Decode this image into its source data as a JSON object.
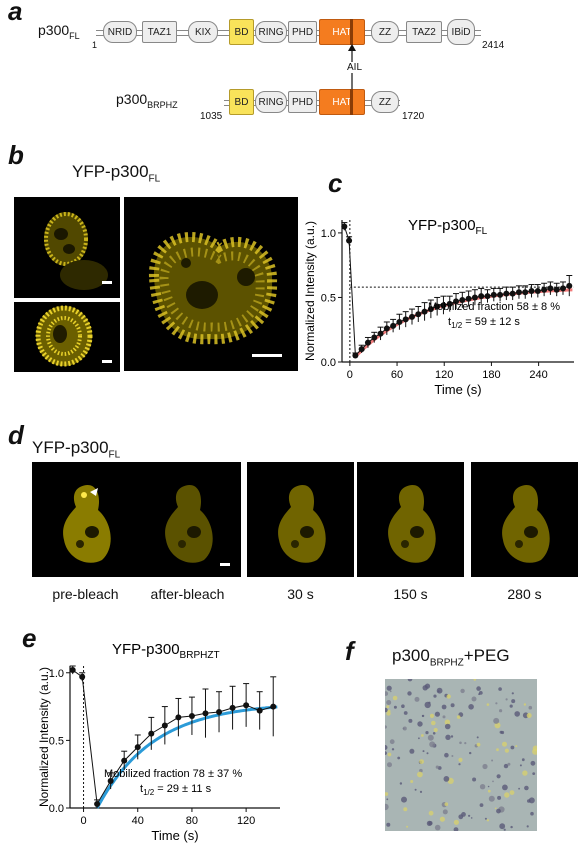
{
  "panels": {
    "a": "a",
    "b": "b",
    "c": "c",
    "d": "d",
    "e": "e",
    "f": "f"
  },
  "panel_a": {
    "fl_name": "p300",
    "fl_sub": "FL",
    "fl_start": "1",
    "fl_end": "2414",
    "fl_domains": [
      "NRID",
      "TAZ1",
      "KIX",
      "BD",
      "RING",
      "PHD",
      "HAT",
      "ZZ",
      "TAZ2",
      "IBiD"
    ],
    "ail_label": "AIL",
    "brphz_name": "p300",
    "brphz_sub": "BRPHZ",
    "brphz_start": "1035",
    "brphz_end": "1720",
    "brphz_domains": [
      "BD",
      "RING",
      "PHD",
      "HAT",
      "ZZ"
    ]
  },
  "panel_b": {
    "title": "YFP-p300",
    "title_sub": "FL"
  },
  "panel_d": {
    "title": "YFP-p300",
    "title_sub": "FL",
    "timepoints": [
      "pre-bleach",
      "after-bleach",
      "30 s",
      "150 s",
      "280 s"
    ]
  },
  "panel_f": {
    "title_pre": "p300",
    "title_sub": "BRPHZ",
    "title_post": "+PEG"
  },
  "chart_data": [
    {
      "panel": "c",
      "type": "line",
      "title": "YFP-p300",
      "title_sub": "FL",
      "xlabel": "Time (s)",
      "ylabel": "Normalized Intensity (a.u.)",
      "xlim": [
        -10,
        285
      ],
      "ylim": [
        0,
        1.1
      ],
      "xticks": [
        "0",
        "60",
        "120",
        "180",
        "240"
      ],
      "yticks": [
        "0.0",
        "0.5",
        "1.0"
      ],
      "series": [
        {
          "type": "scatter",
          "x": [
            -7,
            -1,
            7,
            15,
            23,
            31,
            39,
            47,
            55,
            63,
            71,
            79,
            87,
            95,
            103,
            111,
            119,
            127,
            135,
            143,
            151,
            159,
            167,
            175,
            183,
            191,
            199,
            207,
            215,
            223,
            231,
            239,
            247,
            255,
            263,
            271,
            279
          ],
          "y": [
            1.05,
            0.94,
            0.05,
            0.1,
            0.15,
            0.19,
            0.22,
            0.26,
            0.28,
            0.31,
            0.33,
            0.35,
            0.37,
            0.39,
            0.41,
            0.43,
            0.44,
            0.45,
            0.47,
            0.48,
            0.49,
            0.5,
            0.51,
            0.51,
            0.52,
            0.52,
            0.53,
            0.53,
            0.54,
            0.54,
            0.55,
            0.55,
            0.56,
            0.57,
            0.56,
            0.57,
            0.59
          ],
          "err": [
            0.03,
            0.03,
            0.02,
            0.03,
            0.04,
            0.04,
            0.05,
            0.05,
            0.05,
            0.06,
            0.06,
            0.06,
            0.06,
            0.07,
            0.07,
            0.07,
            0.07,
            0.06,
            0.06,
            0.06,
            0.06,
            0.06,
            0.06,
            0.05,
            0.05,
            0.05,
            0.05,
            0.05,
            0.05,
            0.05,
            0.05,
            0.05,
            0.05,
            0.05,
            0.05,
            0.05,
            0.08
          ]
        }
      ],
      "fit": {
        "plateau": 0.58,
        "y0": 0.04,
        "thalf": 59,
        "color": "#f07a7a"
      },
      "plateau_line": 0.58,
      "annotation_line1": "Mobilized fraction 58 ± 8 %",
      "annotation_line2_pre": "t",
      "annotation_line2_sub": "1/2",
      "annotation_line2_post": " = 59 ± 12 s"
    },
    {
      "panel": "e",
      "type": "line",
      "title": "YFP-p300",
      "title_sub": "BRPHZT",
      "xlabel": "Time (s)",
      "ylabel": "Normalized Intensity (a.u.)",
      "xlim": [
        -10,
        145
      ],
      "ylim": [
        0,
        1.05
      ],
      "xticks": [
        "0",
        "40",
        "80",
        "120"
      ],
      "yticks": [
        "0.0",
        "0.5",
        "1.0"
      ],
      "series": [
        {
          "type": "scatter",
          "x": [
            -8,
            -1,
            10,
            20,
            30,
            40,
            50,
            60,
            70,
            80,
            90,
            100,
            110,
            120,
            130,
            140
          ],
          "y": [
            1.02,
            0.97,
            0.03,
            0.2,
            0.35,
            0.45,
            0.55,
            0.61,
            0.67,
            0.68,
            0.7,
            0.71,
            0.74,
            0.76,
            0.72,
            0.75
          ],
          "err": [
            0.03,
            0.03,
            0.03,
            0.06,
            0.07,
            0.09,
            0.12,
            0.14,
            0.14,
            0.14,
            0.18,
            0.15,
            0.16,
            0.16,
            0.14,
            0.22
          ]
        }
      ],
      "fit": {
        "plateau": 0.78,
        "y0": 0.0,
        "thalf": 29,
        "color": "#2b9bd8"
      },
      "annotation_line1": "Mobilized fraction 78 ± 37 %",
      "annotation_line2_pre": "t",
      "annotation_line2_sub": "1/2",
      "annotation_line2_post": " = 29 ± 11 s"
    }
  ]
}
